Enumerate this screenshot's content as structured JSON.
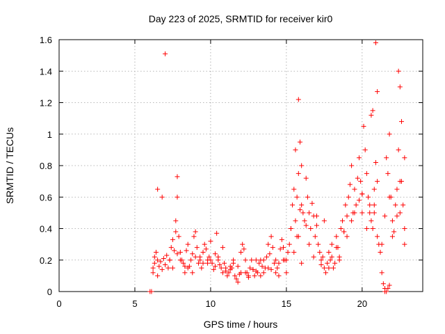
{
  "chart_data": {
    "type": "scatter",
    "title": "Day 223 of 2025, SRMTID for receiver kir0",
    "xlabel": "GPS time / hours",
    "ylabel": "SRMTID / TECUs",
    "xlim": [
      0,
      24
    ],
    "ylim": [
      0,
      1.6
    ],
    "xticks": [
      0,
      5,
      10,
      15,
      20
    ],
    "yticks": [
      0,
      0.2,
      0.4,
      0.6,
      0.8,
      1,
      1.2,
      1.4,
      1.6
    ],
    "xtick_labels": [
      "0",
      "5",
      "10",
      "15",
      "20"
    ],
    "ytick_labels": [
      "0",
      "0.2",
      "0.4",
      "0.6",
      "0.8",
      "1",
      "1.2",
      "1.4",
      "1.6"
    ],
    "grid": true,
    "marker": "+",
    "color": "#ff0000",
    "series": [
      {
        "name": "SRMTID",
        "x": [
          6.0,
          6.1,
          6.2,
          6.2,
          6.3,
          6.3,
          6.4,
          6.5,
          6.5,
          6.6,
          6.7,
          6.8,
          6.9,
          7.0,
          7.1,
          7.2,
          7.3,
          7.4,
          7.5,
          7.6,
          7.7,
          7.7,
          7.8,
          7.8,
          7.9,
          8.0,
          8.1,
          8.2,
          8.3,
          8.4,
          8.5,
          8.6,
          8.7,
          8.8,
          8.9,
          9.0,
          9.1,
          9.2,
          9.3,
          9.4,
          9.5,
          9.6,
          9.7,
          9.8,
          9.9,
          10.0,
          10.1,
          10.2,
          10.3,
          10.4,
          10.5,
          10.6,
          10.7,
          10.8,
          10.9,
          11.0,
          11.1,
          11.2,
          11.3,
          11.4,
          11.5,
          11.6,
          11.7,
          11.8,
          11.9,
          12.0,
          12.1,
          12.2,
          12.3,
          12.4,
          12.5,
          12.6,
          12.7,
          12.8,
          12.9,
          13.0,
          13.1,
          13.2,
          13.3,
          13.4,
          13.5,
          13.6,
          13.7,
          13.8,
          13.9,
          14.0,
          14.1,
          14.2,
          14.3,
          14.4,
          14.5,
          14.6,
          14.7,
          14.8,
          14.9,
          15.0,
          15.1,
          15.2,
          15.3,
          15.4,
          15.5,
          15.6,
          15.6,
          15.7,
          15.7,
          15.8,
          15.8,
          15.9,
          15.9,
          16.0,
          16.0,
          16.1,
          16.2,
          16.3,
          16.4,
          16.5,
          16.6,
          16.7,
          16.8,
          16.9,
          17.0,
          17.1,
          17.2,
          17.3,
          17.4,
          17.5,
          17.6,
          17.7,
          17.8,
          17.9,
          18.0,
          18.1,
          18.2,
          18.3,
          18.4,
          18.5,
          18.6,
          18.7,
          18.8,
          18.9,
          19.0,
          19.1,
          19.2,
          19.3,
          19.4,
          19.5,
          19.6,
          19.7,
          19.8,
          19.9,
          20.0,
          20.0,
          20.1,
          20.2,
          20.3,
          20.4,
          20.5,
          20.6,
          20.7,
          20.8,
          20.8,
          20.9,
          20.9,
          21.0,
          21.0,
          21.1,
          21.2,
          21.3,
          21.4,
          21.5,
          21.6,
          21.7,
          21.8,
          21.9,
          22.0,
          22.1,
          22.2,
          22.3,
          22.4,
          22.4,
          22.5,
          22.5,
          22.6,
          22.6,
          22.7,
          22.8,
          22.8,
          6.5,
          7.0,
          7.5,
          8.0,
          8.5,
          9.0,
          9.5,
          10.0,
          10.5,
          11.0,
          11.5,
          12.0,
          12.5,
          13.0,
          13.5,
          14.0,
          14.5,
          15.0,
          15.5,
          16.0,
          16.5,
          17.0,
          17.5,
          18.0,
          18.5,
          19.0,
          19.5,
          20.0,
          20.5,
          21.0,
          21.5,
          22.0,
          22.5,
          6.8,
          7.3,
          7.8,
          8.3,
          8.8,
          9.3,
          9.8,
          10.3,
          10.8,
          11.3,
          11.8,
          12.3,
          12.8,
          13.3,
          13.8,
          14.3,
          14.8,
          15.3,
          15.8,
          16.3,
          16.8,
          17.3,
          17.8,
          18.3,
          18.8,
          19.3,
          19.8,
          20.3,
          20.8,
          21.3,
          21.8,
          22.3,
          22.8,
          21.5,
          21.6,
          21.7,
          21.8,
          20.6,
          20.7
        ],
        "y": [
          0.0,
          0.0,
          0.15,
          0.12,
          0.18,
          0.22,
          0.25,
          0.2,
          0.1,
          0.16,
          0.19,
          0.14,
          0.21,
          0.17,
          0.23,
          0.15,
          0.2,
          0.28,
          0.33,
          0.26,
          0.38,
          0.45,
          0.6,
          0.73,
          0.35,
          0.25,
          0.2,
          0.18,
          0.12,
          0.26,
          0.3,
          0.16,
          0.2,
          0.24,
          0.35,
          0.38,
          0.28,
          0.18,
          0.22,
          0.15,
          0.25,
          0.3,
          0.27,
          0.2,
          0.22,
          0.32,
          0.18,
          0.14,
          0.24,
          0.37,
          0.2,
          0.17,
          0.15,
          0.12,
          0.18,
          0.13,
          0.1,
          0.12,
          0.16,
          0.15,
          0.2,
          0.1,
          0.08,
          0.06,
          0.11,
          0.25,
          0.3,
          0.27,
          0.2,
          0.12,
          0.09,
          0.15,
          0.2,
          0.14,
          0.1,
          0.13,
          0.12,
          0.18,
          0.2,
          0.16,
          0.2,
          0.15,
          0.22,
          0.3,
          0.24,
          0.35,
          0.28,
          0.18,
          0.2,
          0.15,
          0.1,
          0.27,
          0.33,
          0.28,
          0.2,
          0.12,
          0.25,
          0.3,
          0.4,
          0.55,
          0.65,
          0.45,
          0.9,
          0.6,
          0.35,
          0.75,
          1.22,
          0.52,
          0.95,
          0.8,
          0.55,
          0.5,
          0.45,
          0.72,
          0.6,
          0.5,
          0.4,
          0.56,
          0.48,
          0.35,
          0.42,
          0.3,
          0.25,
          0.17,
          0.22,
          0.15,
          0.12,
          0.18,
          0.25,
          0.2,
          0.3,
          0.15,
          0.18,
          0.35,
          0.28,
          0.22,
          0.4,
          0.45,
          0.38,
          0.55,
          0.48,
          0.6,
          0.68,
          0.8,
          0.5,
          0.65,
          0.55,
          0.72,
          0.85,
          0.7,
          0.5,
          0.62,
          1.05,
          0.9,
          0.75,
          0.6,
          0.5,
          0.45,
          0.4,
          0.55,
          0.65,
          0.82,
          1.58,
          0.35,
          1.27,
          0.3,
          0.25,
          0.12,
          0.05,
          0.02,
          0.85,
          0.75,
          1.0,
          0.6,
          0.45,
          0.38,
          0.55,
          0.65,
          0.9,
          1.4,
          0.5,
          1.3,
          0.7,
          1.08,
          0.55,
          0.85,
          0.3,
          0.65,
          1.51,
          0.15,
          0.2,
          0.15,
          0.22,
          0.18,
          0.2,
          0.22,
          0.15,
          0.18,
          0.12,
          0.1,
          0.2,
          0.12,
          0.14,
          0.18,
          0.2,
          0.25,
          0.18,
          0.3,
          0.48,
          0.45,
          0.22,
          0.2,
          0.35,
          0.5,
          0.62,
          0.55,
          0.7,
          0.48,
          0.35,
          0.7,
          0.6,
          0.2,
          0.24,
          0.16,
          0.12,
          0.2,
          0.18,
          0.16,
          0.28,
          0.14,
          0.16,
          0.12,
          0.14,
          0.1,
          0.15,
          0.12,
          0.2,
          0.4,
          0.35,
          0.42,
          0.22,
          0.2,
          0.15,
          0.28,
          0.38,
          0.45,
          0.58,
          0.4,
          0.5,
          0.3,
          0.6,
          0.48,
          0.4,
          0.0,
          0.0,
          0.02,
          0.04,
          1.12,
          1.15
        ]
      }
    ]
  }
}
